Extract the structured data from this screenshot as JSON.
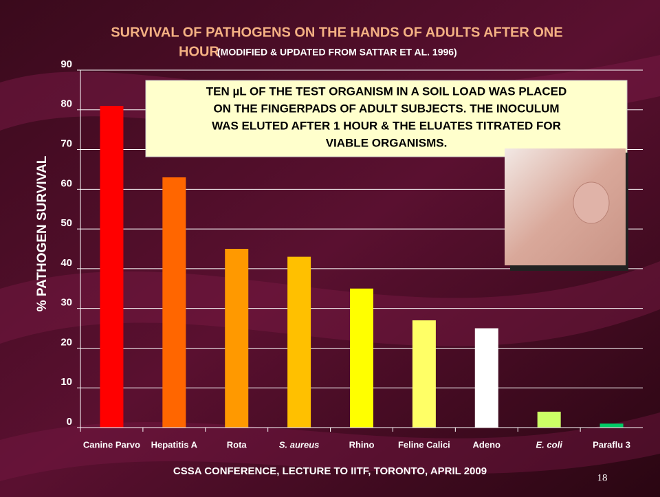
{
  "chart_data": {
    "type": "bar",
    "title": "SURVIVAL OF PATHOGENS ON THE HANDS OF ADULTS AFTER ONE",
    "title_line2": "HOUR",
    "subtitle": "(MODIFIED & UPDATED FROM SATTAR ET AL. 1996)",
    "y_label": "% PATHOGEN SURVIVAL",
    "annotation": [
      "TEN µL OF THE TEST ORGANISM IN A SOIL LOAD WAS PLACED",
      "ON THE FINGERPADS OF ADULT SUBJECTS. THE INOCULUM",
      "WAS ELUTED AFTER 1 HOUR & THE ELUATES TITRATED FOR",
      "VIABLE ORGANISMS."
    ],
    "footer": "CSSA CONFERENCE, LECTURE TO IITF, TORONTO, APRIL 2009",
    "page_number": "18",
    "categories": [
      "Canine Parvo",
      "Hepatitis A",
      "Rota",
      "S. aureus",
      "Rhino",
      "Feline Calici",
      "Adeno",
      "E. coli",
      "Paraflu 3"
    ],
    "values": [
      81,
      63,
      45,
      43,
      35,
      27,
      25,
      4,
      1
    ],
    "colors": [
      "#ff0000",
      "#ff6600",
      "#ff9900",
      "#ffc000",
      "#ffff00",
      "#ffff66",
      "#ffffff",
      "#ccff66",
      "#00cc66"
    ],
    "ylim": [
      0,
      90
    ],
    "yticks": [
      0,
      10,
      20,
      30,
      40,
      50,
      60,
      70,
      80,
      90
    ],
    "grid": true
  }
}
